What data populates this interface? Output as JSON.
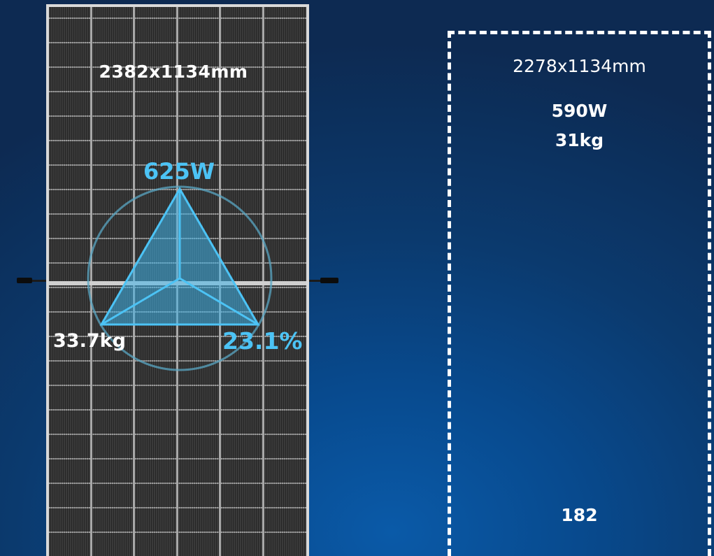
{
  "panel": {
    "dimensions": "2382x1134mm",
    "power": "625W",
    "weight": "33.7kg",
    "efficiency": "23.1%"
  },
  "comparison": {
    "dimensions": "2278x1134mm",
    "power": "590W",
    "weight": "31kg",
    "cell_size": "182"
  },
  "colors": {
    "accent": "#4cc3f5",
    "background": "#0b3a6e",
    "panel_frame": "#d9d9d9",
    "panel_cells": "#3a3a3a"
  }
}
